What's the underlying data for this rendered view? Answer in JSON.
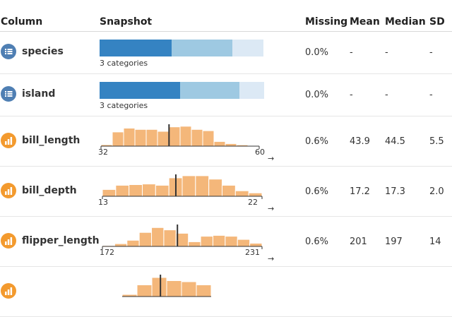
{
  "columns": {
    "column": "Column",
    "snapshot": "Snapshot",
    "missing": "Missing",
    "mean": "Mean",
    "median": "Median",
    "sd": "SD"
  },
  "colors": {
    "cat1": "#3583c2",
    "cat2": "#9ec9e2",
    "cat3": "#dce9f5",
    "hist_fill": "#f4b77a",
    "hist_stroke": "#ffffff",
    "marker": "#333333",
    "icon_categorical": "#4f7fb3",
    "icon_numeric": "#f39a2e"
  },
  "rows": [
    {
      "name": "species",
      "type": "categorical",
      "icon": "list-icon",
      "snapshot_label": "3 categories",
      "category_fractions": [
        0.44,
        0.37,
        0.19
      ],
      "missing": "0.0%",
      "mean": "-",
      "median": "-",
      "sd": "-"
    },
    {
      "name": "island",
      "type": "categorical",
      "icon": "list-icon",
      "snapshot_label": "3 categories",
      "category_fractions": [
        0.49,
        0.36,
        0.15
      ],
      "missing": "0.0%",
      "mean": "-",
      "median": "-",
      "sd": "-"
    },
    {
      "name": "bill_length",
      "type": "numeric",
      "icon": "bar-chart-icon",
      "min_label": "32",
      "max_label": "60",
      "arrow": "→",
      "hist_fractions": [
        0.07,
        0.67,
        0.85,
        0.79,
        0.79,
        0.7,
        0.91,
        0.94,
        0.79,
        0.73,
        0.22,
        0.12,
        0.06,
        0.03
      ],
      "marker_fraction": 0.43,
      "missing": "0.6%",
      "mean": "43.9",
      "median": "44.5",
      "sd": "5.5"
    },
    {
      "name": "bill_depth",
      "type": "numeric",
      "icon": "bar-chart-icon",
      "min_label": "13",
      "max_label": "22",
      "arrow": "→",
      "hist_fractions": [
        0.32,
        0.52,
        0.55,
        0.58,
        0.52,
        0.87,
        0.97,
        0.97,
        0.81,
        0.52,
        0.26,
        0.16
      ],
      "marker_fraction": 0.46,
      "missing": "0.6%",
      "mean": "17.2",
      "median": "17.3",
      "sd": "2.0"
    },
    {
      "name": "flipper_length",
      "type": "numeric",
      "icon": "bar-chart-icon",
      "min_label": "172",
      "max_label": "231",
      "arrow": "→",
      "hist_fractions": [
        0.04,
        0.13,
        0.29,
        0.66,
        0.89,
        0.78,
        0.62,
        0.22,
        0.48,
        0.52,
        0.48,
        0.33,
        0.15
      ],
      "marker_fraction": 0.47,
      "missing": "0.6%",
      "mean": "201",
      "median": "197",
      "sd": "14"
    },
    {
      "name": "",
      "type": "numeric",
      "icon": "bar-chart-icon",
      "hist_fractions": [
        0.1,
        0.55,
        0.9,
        0.75,
        0.7,
        0.55
      ],
      "marker_fraction": 0.43
    }
  ]
}
